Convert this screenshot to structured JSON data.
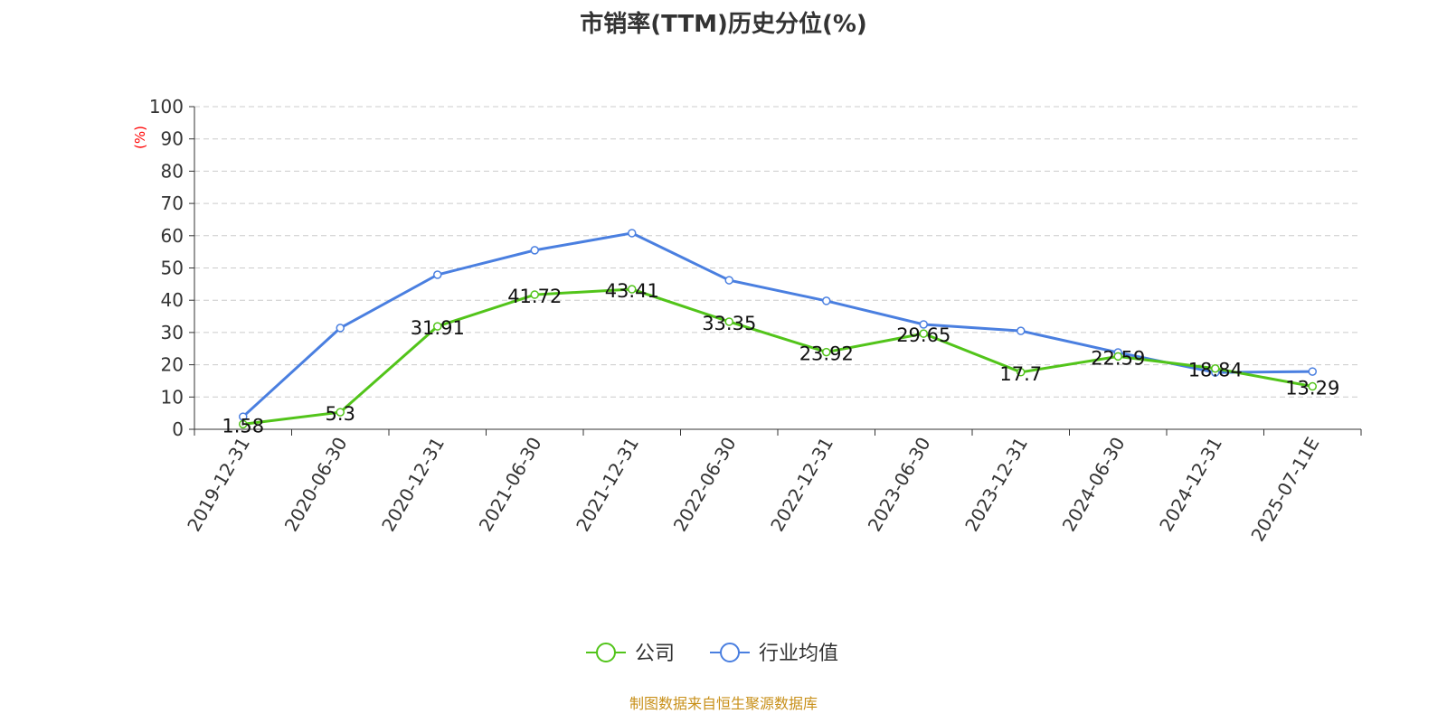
{
  "chart_data": {
    "type": "line",
    "title": "市销率(TTM)历史分位(%)",
    "ylabel": "(%)",
    "ylim": [
      0,
      100
    ],
    "yticks": [
      0,
      10,
      20,
      30,
      40,
      50,
      60,
      70,
      80,
      90,
      100
    ],
    "grid": true,
    "legend_position": "bottom",
    "categories": [
      "2019-12-31",
      "2020-06-30",
      "2020-12-31",
      "2021-06-30",
      "2021-12-31",
      "2022-06-30",
      "2022-12-31",
      "2023-06-30",
      "2023-12-31",
      "2024-06-30",
      "2024-12-31",
      "2025-07-11E"
    ],
    "series": [
      {
        "name": "公司",
        "color": "#52c41a",
        "labels": true,
        "values": [
          1.58,
          5.3,
          31.91,
          41.72,
          43.41,
          33.35,
          23.92,
          29.65,
          17.7,
          22.59,
          18.84,
          13.29
        ]
      },
      {
        "name": "行业均值",
        "color": "#4a7fe0",
        "labels": false,
        "values": [
          3.9,
          31.4,
          47.9,
          55.5,
          60.8,
          46.2,
          39.8,
          32.5,
          30.5,
          23.8,
          17.6,
          17.9
        ]
      }
    ]
  },
  "footer": {
    "source": "制图数据来自恒生聚源数据库"
  }
}
